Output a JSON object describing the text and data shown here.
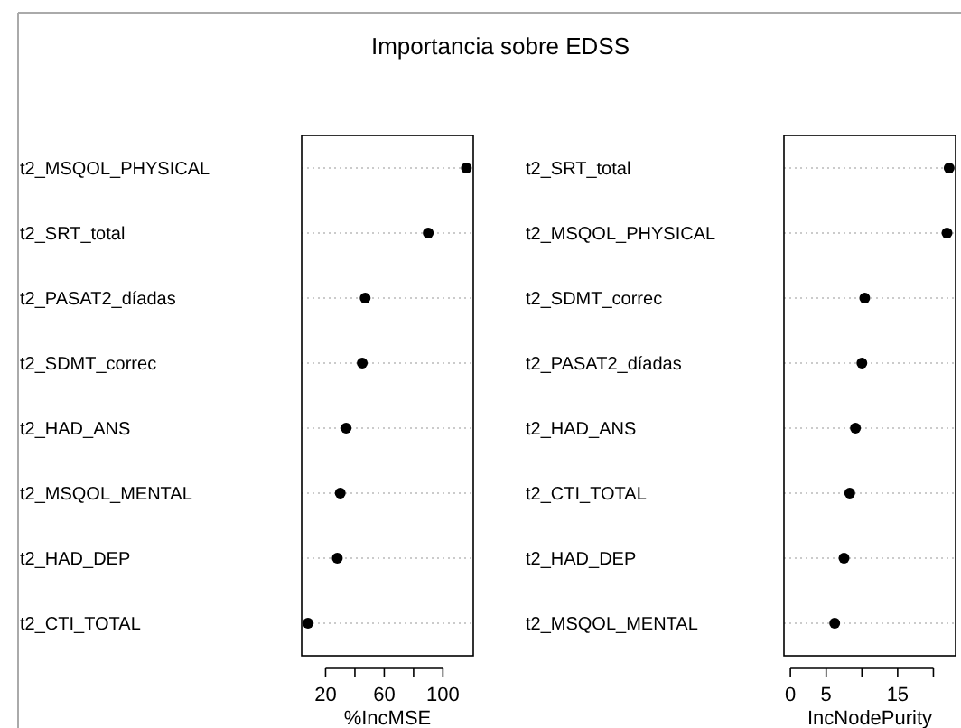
{
  "chart_data": [
    {
      "type": "scatter",
      "title": "Importancia sobre EDSS",
      "orientation": "horizontal",
      "marker": "circle",
      "grid": "y",
      "color": "#000000",
      "categories": [
        "t2_MSQOL_PHYSICAL",
        "t2_SRT_total",
        "t2_PASAT2_díadas",
        "t2_SDMT_correc",
        "t2_HAD_ANS",
        "t2_MSQOL_MENTAL",
        "t2_HAD_DEP",
        "t2_CTI_TOTAL"
      ],
      "values": [
        116,
        90,
        47,
        45,
        34,
        30,
        28,
        8
      ],
      "xlabel": "%IncMSE",
      "xlim": [
        3.7,
        120.7
      ],
      "xticks": [
        20,
        {
          "value": 40,
          "label": null
        },
        60,
        {
          "value": 80,
          "label": null
        },
        100
      ]
    },
    {
      "type": "scatter",
      "orientation": "horizontal",
      "marker": "circle",
      "grid": "y",
      "color": "#000000",
      "categories": [
        "t2_SRT_total",
        "t2_MSQOL_PHYSICAL",
        "t2_SDMT_correc",
        "t2_PASAT2_díadas",
        "t2_HAD_ANS",
        "t2_CTI_TOTAL",
        "t2_HAD_DEP",
        "t2_MSQOL_MENTAL"
      ],
      "values": [
        22.2,
        21.9,
        10.4,
        10.0,
        9.1,
        8.3,
        7.5,
        6.2
      ],
      "xlabel": "IncNodePurity",
      "xlim": [
        -0.9,
        23.1
      ],
      "xticks": [
        0,
        5,
        {
          "value": 10,
          "label": null
        },
        15,
        {
          "value": 20,
          "label": null
        }
      ]
    }
  ]
}
